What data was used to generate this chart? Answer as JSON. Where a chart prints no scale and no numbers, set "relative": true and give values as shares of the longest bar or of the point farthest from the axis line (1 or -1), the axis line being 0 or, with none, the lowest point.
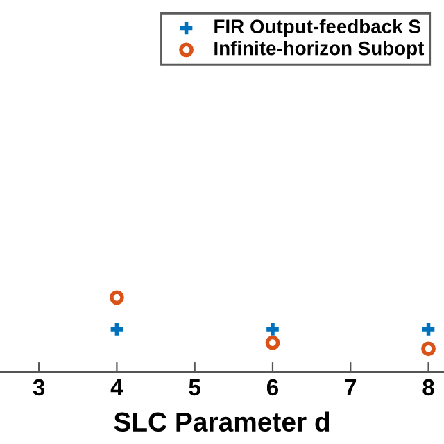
{
  "chart_data": {
    "type": "scatter",
    "xlabel": "SLC Parameter d",
    "relative": true,
    "x": [
      4,
      6,
      8
    ],
    "xlim": [
      2.5,
      8.2
    ],
    "xticks": [
      3,
      4,
      5,
      6,
      7,
      8
    ],
    "series": [
      {
        "name": "FIR Output-feedback S",
        "color": "#0072bd",
        "marker": "cross",
        "values": [
          0.57,
          0.57,
          0.57
        ]
      },
      {
        "name": "Infinite-horizon Subopt",
        "color": "#d95319",
        "marker": "circle",
        "values": [
          1,
          0.39,
          0.31
        ]
      }
    ],
    "legend": "top right",
    "grid": false
  }
}
